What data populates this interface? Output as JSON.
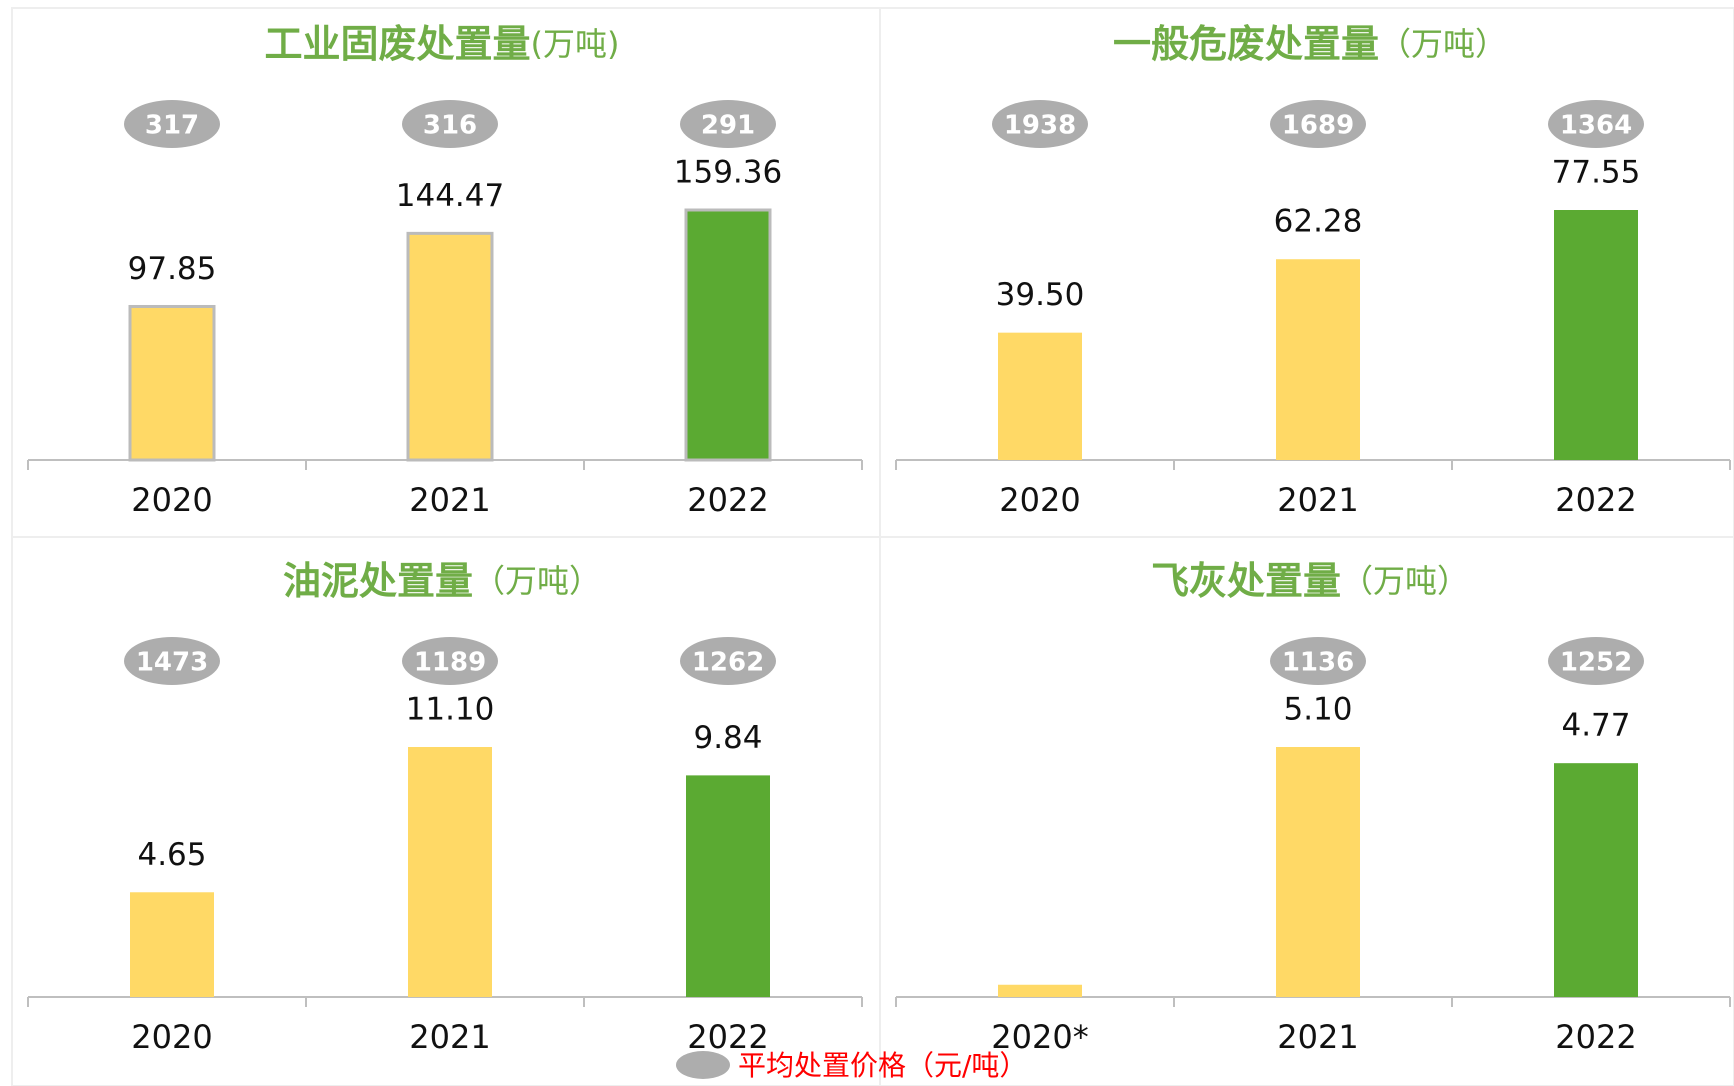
{
  "chart_data": [
    {
      "type": "bar",
      "title": "工业固废处置量",
      "title_unit": "(万吨)",
      "categories": [
        "2020",
        "2021",
        "2022"
      ],
      "values": [
        97.85,
        144.47,
        159.36
      ],
      "value_labels": [
        "97.85",
        "144.47",
        "159.36"
      ],
      "prices": [
        317,
        316,
        291
      ],
      "colors": [
        "#FFD966",
        "#FFD966",
        "#5BAA32"
      ],
      "bar_border": "#BBBBBB"
    },
    {
      "type": "bar",
      "title": "一般危废处置量",
      "title_unit": "（万吨）",
      "categories": [
        "2020",
        "2021",
        "2022"
      ],
      "values": [
        39.5,
        62.28,
        77.55
      ],
      "value_labels": [
        "39.50",
        "62.28",
        "77.55"
      ],
      "prices": [
        1938,
        1689,
        1364
      ],
      "colors": [
        "#FFD966",
        "#FFD966",
        "#5BAA32"
      ]
    },
    {
      "type": "bar",
      "title": "油泥处置量",
      "title_unit": "（万吨）",
      "categories": [
        "2020",
        "2021",
        "2022"
      ],
      "values": [
        4.65,
        11.1,
        9.84
      ],
      "value_labels": [
        "4.65",
        "11.10",
        "9.84"
      ],
      "prices": [
        1473,
        1189,
        1262
      ],
      "colors": [
        "#FFD966",
        "#FFD966",
        "#5BAA32"
      ]
    },
    {
      "type": "bar",
      "title": "飞灰处置量",
      "title_unit": "（万吨）",
      "categories": [
        "2020*",
        "2021",
        "2022"
      ],
      "values": [
        0.25,
        5.1,
        4.77
      ],
      "value_labels": [
        null,
        "5.10",
        "4.77"
      ],
      "prices": [
        null,
        1136,
        1252
      ],
      "colors": [
        "#FFD966",
        "#FFD966",
        "#5BAA32"
      ]
    }
  ],
  "legend": {
    "label": "平均处置价格（元/吨）",
    "color": "#ADADAD"
  }
}
